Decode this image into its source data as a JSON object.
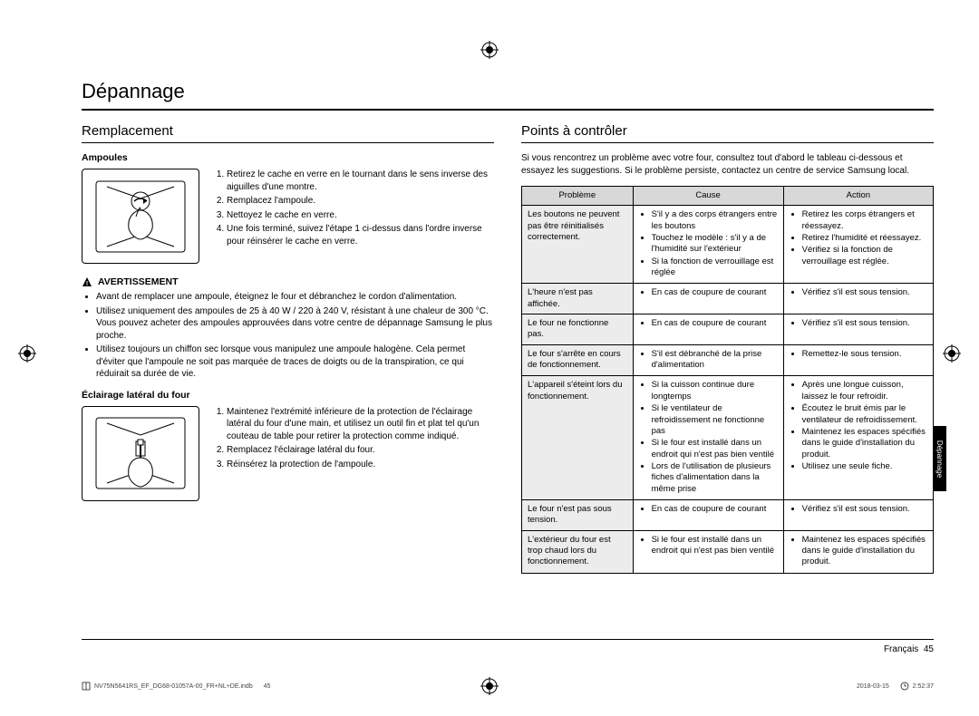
{
  "title": "Dépannage",
  "left": {
    "heading": "Remplacement",
    "sec1": {
      "label": "Ampoules",
      "steps": [
        "Retirez le cache en verre en le tournant dans le sens inverse des aiguilles d'une montre.",
        "Remplacez l'ampoule.",
        "Nettoyez le cache en verre.",
        "Une fois terminé, suivez l'étape 1 ci-dessus dans l'ordre inverse pour réinsérer le cache en verre."
      ]
    },
    "warn_label": "AVERTISSEMENT",
    "warn_items": [
      "Avant de remplacer une ampoule, éteignez le four et débranchez le cordon d'alimentation.",
      "Utilisez uniquement des ampoules de 25 à 40 W / 220 à 240 V, résistant à une chaleur de 300 °C. Vous pouvez acheter des ampoules approuvées dans votre centre de dépannage Samsung le plus proche.",
      "Utilisez toujours un chiffon sec lorsque vous manipulez une ampoule halogène. Cela permet d'éviter que l'ampoule ne soit pas marquée de traces de doigts ou de la transpiration, ce qui réduirait sa durée de vie."
    ],
    "sec2": {
      "label": "Éclairage latéral du four",
      "steps": [
        "Maintenez l'extrémité inférieure de la protection de l'éclairage latéral du four d'une main, et utilisez un outil fin et plat tel qu'un couteau de table pour retirer la protection comme indiqué.",
        "Remplacez l'éclairage latéral du four.",
        "Réinsérez la protection de l'ampoule."
      ]
    }
  },
  "right": {
    "heading": "Points à contrôler",
    "intro": "Si vous rencontrez un problème avec votre four, consultez tout d'abord le tableau ci-dessous et essayez les suggestions. Si le problème persiste, contactez un centre de service Samsung local.",
    "headers": {
      "c1": "Problème",
      "c2": "Cause",
      "c3": "Action"
    },
    "rows": [
      {
        "p": "Les boutons ne peuvent pas être réinitialisés correctement.",
        "c": [
          "S'il y a des corps étrangers entre les boutons",
          "Touchez le modèle : s'il y a de l'humidité sur l'extérieur",
          "Si la fonction de verrouillage est réglée"
        ],
        "a": [
          "Retirez les corps étrangers et réessayez.",
          "Retirez l'humidité et réessayez.",
          "Vérifiez si la fonction de verrouillage est réglée."
        ]
      },
      {
        "p": "L'heure n'est pas affichée.",
        "c": [
          "En cas de coupure de courant"
        ],
        "a": [
          "Vérifiez s'il est sous tension."
        ]
      },
      {
        "p": "Le four ne fonctionne pas.",
        "c": [
          "En cas de coupure de courant"
        ],
        "a": [
          "Vérifiez s'il est sous tension."
        ]
      },
      {
        "p": "Le four s'arrête en cours de fonctionnement.",
        "c": [
          "S'il est débranché de la prise d'alimentation"
        ],
        "a": [
          "Remettez-le sous tension."
        ]
      },
      {
        "p": "L'appareil s'éteint lors du fonctionnement.",
        "c": [
          "Si la cuisson continue dure longtemps",
          "Si le ventilateur de refroidissement ne fonctionne pas",
          "Si le four est installé dans un endroit qui n'est pas bien ventilé",
          "Lors de l'utilisation de plusieurs fiches d'alimentation dans la même prise"
        ],
        "a": [
          "Après une longue cuisson, laissez le four refroidir.",
          "Écoutez le bruit émis par le ventilateur de refroidissement.",
          "Maintenez les espaces spécifiés dans le guide d'installation du produit.",
          "Utilisez une seule fiche."
        ]
      },
      {
        "p": "Le four n'est pas sous tension.",
        "c": [
          "En cas de coupure de courant"
        ],
        "a": [
          "Vérifiez s'il est sous tension."
        ]
      },
      {
        "p": "L'extérieur du four est trop chaud lors du fonctionnement.",
        "c": [
          "Si le four est installé dans un endroit qui n'est pas bien ventilé"
        ],
        "a": [
          "Maintenez les espaces spécifiés dans le guide d'installation du produit."
        ]
      }
    ]
  },
  "sidetab": "Dépannage",
  "footer_lang": "Français",
  "footer_page": "45",
  "print_left_file": "NV75N5641RS_EF_DG68-01057A-00_FR+NL+DE.indb",
  "print_left_page": "45",
  "print_right_date": "2018-03-15",
  "print_right_time": "2:52:37",
  "colors": {
    "th_bg": "#d8d8d8",
    "prob_bg": "#ececec",
    "rule": "#000000"
  }
}
